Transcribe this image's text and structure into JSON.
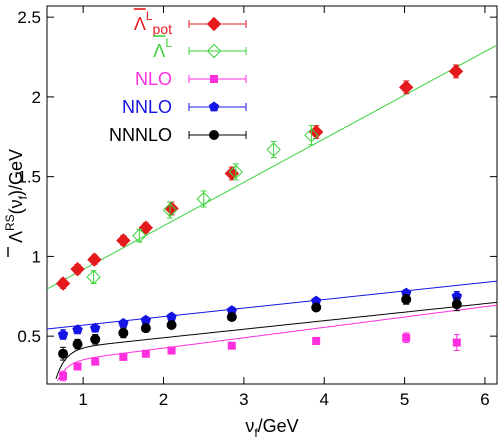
{
  "chart_data": {
    "type": "scatter",
    "xlabel": "ν_f/GeV",
    "xlabel_main": "ν",
    "xlabel_sub": "f",
    "xlabel_rest": "/GeV",
    "ylabel": "Λ̄^RS(ν_f)/GeV",
    "ylabel_main": "Λ",
    "ylabel_sup": "RS",
    "ylabel_paren_open": "(ν",
    "ylabel_paren_sub": "f",
    "ylabel_rest": ")/GeV",
    "xlim": [
      0.55,
      6.15
    ],
    "ylim": [
      0.2,
      2.57
    ],
    "xticks": [
      1,
      2,
      3,
      4,
      5,
      6
    ],
    "xtick_labels": [
      "1",
      "2",
      "3",
      "4",
      "5",
      "6"
    ],
    "yticks": [
      0.5,
      1,
      1.5,
      2,
      2.5
    ],
    "ytick_labels": [
      "0.5",
      "1",
      "1.5",
      "2",
      "2.5"
    ],
    "grid": false,
    "legend_position": "top-left",
    "series": [
      {
        "key": "pot",
        "legend_main": "Λ",
        "legend_sup": "L",
        "legend_sub": "pot",
        "color": "#e41a1c",
        "marker": "diamond-filled",
        "x": [
          0.75,
          0.93,
          1.14,
          1.5,
          1.78,
          2.1,
          2.85,
          3.9,
          5.02,
          5.64
        ],
        "y": [
          0.83,
          0.92,
          0.98,
          1.1,
          1.18,
          1.3,
          1.52,
          1.78,
          2.06,
          2.16
        ],
        "yerr": [
          0.03,
          0.03,
          0.03,
          0.03,
          0.03,
          0.04,
          0.04,
          0.04,
          0.04,
          0.04
        ]
      },
      {
        "key": "lambdaL",
        "legend_main": "Λ",
        "legend_sup": "L",
        "legend_sub": "",
        "color": "#3bd33b",
        "marker": "diamond-open",
        "x": [
          1.13,
          1.7,
          2.08,
          2.5,
          2.9,
          3.37,
          3.84
        ],
        "y": [
          0.87,
          1.13,
          1.29,
          1.36,
          1.53,
          1.67,
          1.76
        ],
        "yerr": [
          0.04,
          0.04,
          0.05,
          0.05,
          0.05,
          0.05,
          0.06
        ],
        "fit_line": {
          "x": [
            0.55,
            6.15
          ],
          "y": [
            0.795,
            2.325
          ]
        }
      },
      {
        "key": "nlo",
        "legend_main": "NLO",
        "color": "#ff2fe0",
        "marker": "square",
        "x": [
          0.75,
          0.93,
          1.15,
          1.5,
          1.78,
          2.1,
          2.85,
          3.9,
          5.02,
          5.65
        ],
        "y": [
          0.25,
          0.31,
          0.34,
          0.37,
          0.39,
          0.41,
          0.44,
          0.47,
          0.49,
          0.46
        ],
        "yerr": [
          0.03,
          0.02,
          0.02,
          0.02,
          0.02,
          0.02,
          0.02,
          0.02,
          0.03,
          0.05
        ],
        "fit_curve": {
          "a": 0.425,
          "b": 0.065,
          "k": 0.9
        }
      },
      {
        "key": "nnlo",
        "legend_main": "NNLO",
        "color": "#1414e6",
        "marker": "pentagon",
        "x": [
          0.75,
          0.93,
          1.15,
          1.5,
          1.78,
          2.1,
          2.85,
          3.9,
          5.02,
          5.65
        ],
        "y": [
          0.51,
          0.54,
          0.55,
          0.58,
          0.6,
          0.62,
          0.66,
          0.72,
          0.77,
          0.75
        ],
        "yerr": [
          0.03,
          0.02,
          0.02,
          0.02,
          0.02,
          0.02,
          0.02,
          0.02,
          0.02,
          0.03
        ],
        "fit_line": {
          "x": [
            0.55,
            6.15
          ],
          "y": [
            0.545,
            0.845
          ]
        }
      },
      {
        "key": "nnnlo",
        "legend_main": "NNNLO",
        "color": "#000000",
        "marker": "circle",
        "x": [
          0.75,
          0.93,
          1.15,
          1.5,
          1.78,
          2.1,
          2.85,
          3.9,
          5.02,
          5.65
        ],
        "y": [
          0.39,
          0.45,
          0.48,
          0.52,
          0.55,
          0.57,
          0.62,
          0.68,
          0.73,
          0.7
        ],
        "yerr": [
          0.04,
          0.03,
          0.03,
          0.03,
          0.02,
          0.02,
          0.02,
          0.02,
          0.03,
          0.04
        ],
        "fit_curve": {
          "a": 0.49,
          "b": 0.0535,
          "k": 1.2
        }
      }
    ]
  }
}
